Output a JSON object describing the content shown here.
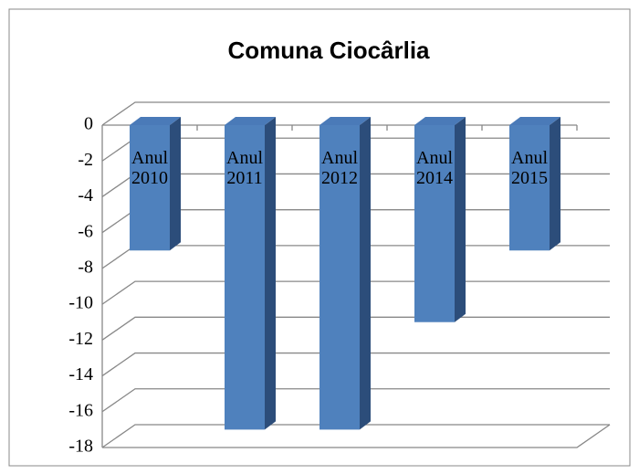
{
  "chart_data": {
    "type": "bar3d",
    "title": "Comuna Ciocârlia",
    "categories": [
      "Anul 2010",
      "Anul 2011",
      "Anul 2012",
      "Anul 2014",
      "Anul 2015"
    ],
    "values": [
      -7,
      -17,
      -17,
      -11,
      -7
    ],
    "color": "#4f81bd",
    "ylim": [
      -18,
      0
    ],
    "yticks": [
      0,
      -2,
      -4,
      -6,
      -8,
      -10,
      -12,
      -14,
      -16,
      -18
    ],
    "grid": true
  }
}
